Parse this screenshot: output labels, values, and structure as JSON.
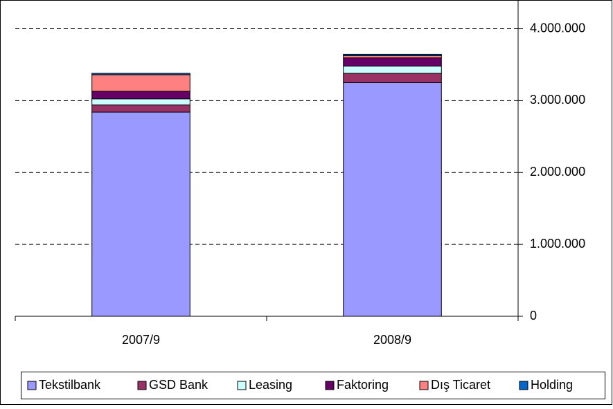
{
  "chart_data": {
    "type": "stacked_bar",
    "categories": [
      "2007/9",
      "2008/9"
    ],
    "series": [
      {
        "name": "Tekstilbank",
        "color": "#9999ff",
        "values": [
          2840000,
          3250000
        ]
      },
      {
        "name": "GSD Bank",
        "color": "#993366",
        "values": [
          100000,
          130000
        ]
      },
      {
        "name": "Leasing",
        "color": "#ccffff",
        "values": [
          85000,
          100000
        ]
      },
      {
        "name": "Faktoring",
        "color": "#660066",
        "values": [
          105000,
          115000
        ]
      },
      {
        "name": "Dış Ticaret",
        "color": "#ff8080",
        "values": [
          230000,
          30000
        ]
      },
      {
        "name": "Holding",
        "color": "#0066cc",
        "values": [
          20000,
          20000
        ]
      }
    ],
    "ylim": [
      0,
      4400000
    ],
    "yticks": [
      0,
      {
        "value": 1000000,
        "label": "1.000.000"
      },
      {
        "value": 2000000,
        "label": "2.000.000"
      },
      {
        "value": 3000000,
        "label": "3.000.000"
      },
      {
        "value": 4000000,
        "label": "4.000.000"
      }
    ],
    "grid": true,
    "legend": "bottom"
  }
}
